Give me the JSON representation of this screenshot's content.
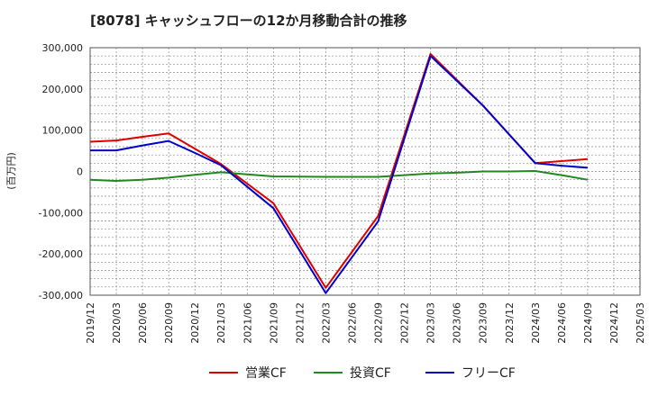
{
  "chart_data": {
    "type": "line",
    "title": "[8078]  キャッシュフローの12か月移動合計の推移",
    "ylabel": "(百万円)",
    "xlabel": "",
    "ylim": [
      -300000,
      300000
    ],
    "y_ticks": [
      300000,
      200000,
      100000,
      0,
      -100000,
      -200000,
      -300000
    ],
    "y_tick_labels": [
      "300,000",
      "200,000",
      "100,000",
      "0",
      "-100,000",
      "-200,000",
      "-300,000"
    ],
    "categories": [
      "2019/12",
      "2020/03",
      "2020/06",
      "2020/09",
      "2020/12",
      "2021/03",
      "2021/06",
      "2021/09",
      "2021/12",
      "2022/03",
      "2022/06",
      "2022/09",
      "2022/12",
      "2023/03",
      "2023/06",
      "2023/09",
      "2023/12",
      "2024/03",
      "2024/06",
      "2024/09",
      "2024/12",
      "2025/03"
    ],
    "grid": true,
    "legend_position": "bottom",
    "series": [
      {
        "name": "営業CF",
        "color": "#dd0000",
        "values": [
          72000,
          75000,
          84000,
          92000,
          55000,
          18000,
          null,
          -77000,
          null,
          -282000,
          null,
          -108000,
          null,
          285000,
          null,
          160000,
          null,
          20000,
          null,
          30000,
          null,
          null
        ]
      },
      {
        "name": "投資CF",
        "color": "#228822",
        "values": [
          -20000,
          -23000,
          -20000,
          -15000,
          -8000,
          -2000,
          -7000,
          -12000,
          null,
          -13000,
          null,
          -13000,
          null,
          -5000,
          -3000,
          0,
          0,
          1000,
          -9000,
          -20000,
          null,
          null
        ]
      },
      {
        "name": "フリーCF",
        "color": "#0000cc",
        "values": [
          51000,
          51000,
          63000,
          74000,
          45000,
          15000,
          null,
          -89000,
          null,
          -295000,
          null,
          -121000,
          null,
          280000,
          null,
          160000,
          null,
          20000,
          14000,
          9000,
          null,
          null
        ]
      }
    ]
  }
}
